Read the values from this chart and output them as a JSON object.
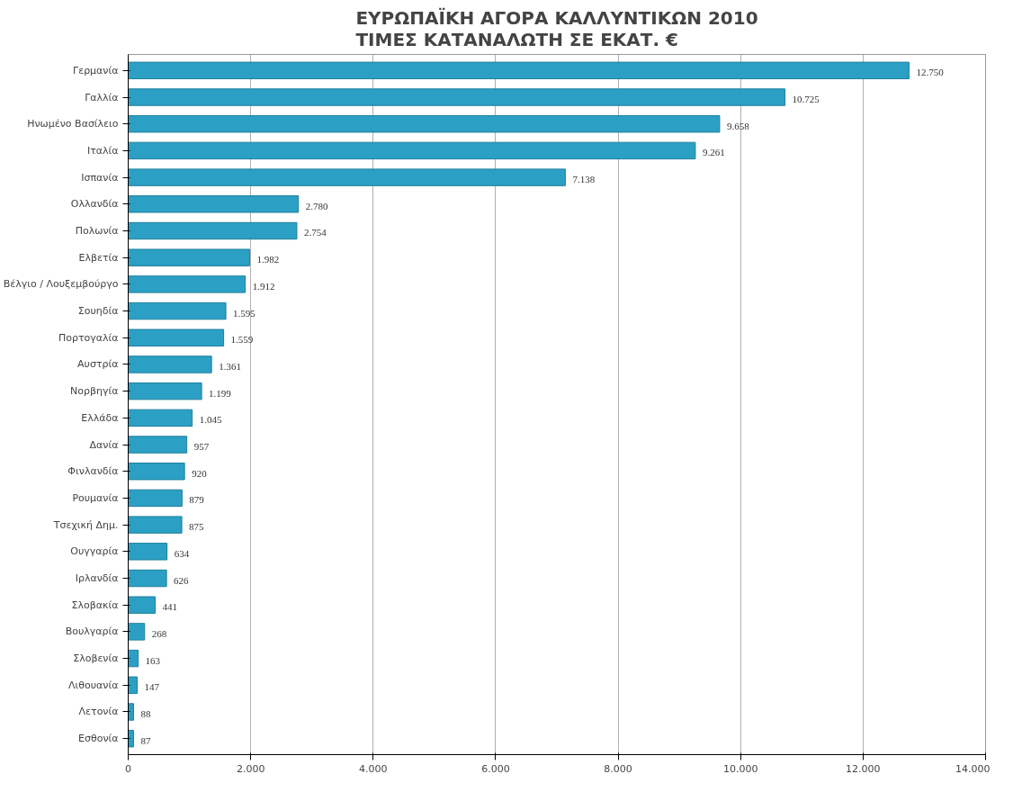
{
  "chart_data": {
    "type": "bar",
    "orientation": "horizontal",
    "title": "ΕΥΡΩΠΑΪΚΗ ΑΓΟΡΑ ΚΑΛΛΥΝΤΙΚΩΝ 2010\nΤΙΜΕΣ ΚΑΤΑΝΑΛΩΤΗ ΣΕ ΕΚΑΤ. €",
    "categories": [
      "Γερμανία",
      "Γαλλία",
      "Ηνωμένο Βασίλειο",
      "Ιταλία",
      "Ισπανία",
      "Ολλανδία",
      "Πολωνία",
      "Ελβετία",
      "Βέλγιο / Λουξεμβούργο",
      "Σουηδία",
      "Πορτογαλία",
      "Αυστρία",
      "Νορβηγία",
      "Ελλάδα",
      "Δανία",
      "Φινλανδία",
      "Ρουμανία",
      "Τσεχική Δημ.",
      "Ουγγαρία",
      "Ιρλανδία",
      "Σλοβακία",
      "Βουλγαρία",
      "Σλοβενία",
      "Λιθουανία",
      "Λετονία",
      "Εσθονία"
    ],
    "values": [
      12750,
      10725,
      9658,
      9261,
      7138,
      2780,
      2754,
      1982,
      1912,
      1595,
      1559,
      1361,
      1199,
      1045,
      957,
      920,
      879,
      875,
      634,
      626,
      441,
      268,
      163,
      147,
      88,
      87
    ],
    "value_labels": [
      "12.750",
      "10.725",
      "9.658",
      "9.261",
      "7.138",
      "2.780",
      "2.754",
      "1.982",
      "1.912",
      "1.595",
      "1.559",
      "1.361",
      "1.199",
      "1.045",
      "957",
      "920",
      "879",
      "875",
      "634",
      "626",
      "441",
      "268",
      "163",
      "147",
      "88",
      "87"
    ],
    "color": "#2ba0c4",
    "xlim": [
      0,
      14000
    ],
    "xticks": [
      {
        "value": 0,
        "label": "0"
      },
      {
        "value": 2000,
        "label": "2.000"
      },
      {
        "value": 4000,
        "label": "4.000"
      },
      {
        "value": 6000,
        "label": "6.000"
      },
      {
        "value": 8000,
        "label": "8.000"
      },
      {
        "value": 10000,
        "label": "10.000"
      },
      {
        "value": 12000,
        "label": "12.000"
      },
      {
        "value": 14000,
        "label": "14.000"
      }
    ],
    "grid": "x"
  }
}
